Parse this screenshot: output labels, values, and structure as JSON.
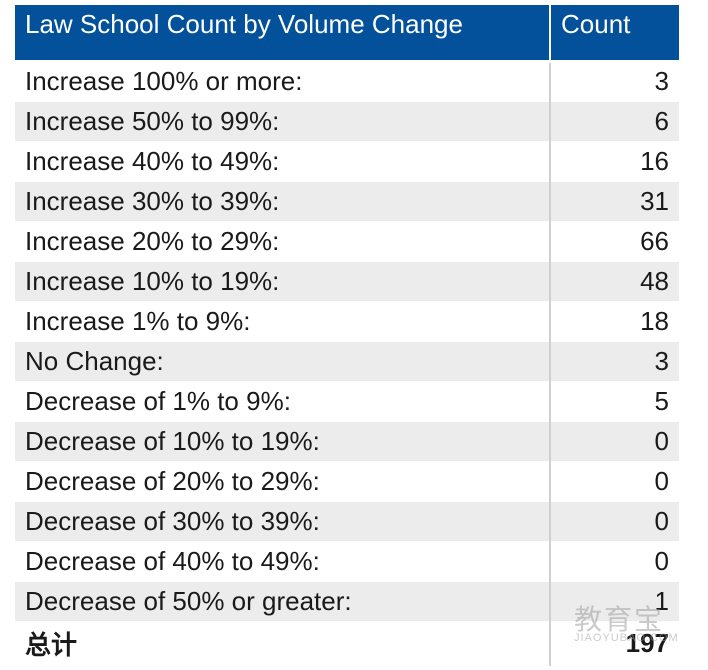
{
  "chart_data": {
    "type": "table",
    "columns": [
      "Law School Count by Volume Change",
      "Count"
    ],
    "rows": [
      {
        "label": "Increase 100% or more:",
        "value": 3
      },
      {
        "label": "Increase 50% to 99%:",
        "value": 6
      },
      {
        "label": "Increase 40% to 49%:",
        "value": 16
      },
      {
        "label": "Increase 30% to 39%:",
        "value": 31
      },
      {
        "label": "Increase 20% to 29%:",
        "value": 66
      },
      {
        "label": "Increase 10% to 19%:",
        "value": 48
      },
      {
        "label": "Increase 1% to 9%:",
        "value": 18
      },
      {
        "label": "No Change:",
        "value": 3
      },
      {
        "label": "Decrease of 1% to 9%:",
        "value": 5
      },
      {
        "label": "Decrease of 10% to 19%:",
        "value": 0
      },
      {
        "label": "Decrease of 20% to 29%:",
        "value": 0
      },
      {
        "label": "Decrease of 30% to 39%:",
        "value": 0
      },
      {
        "label": "Decrease of 40% to 49%:",
        "value": 0
      },
      {
        "label": "Decrease of 50% or greater:",
        "value": 1
      }
    ],
    "total": {
      "label": "总计",
      "value": 197
    }
  },
  "watermark": {
    "text": "教育宝",
    "sub": "JIAOYUBAO.COM"
  },
  "colors": {
    "header_bg": "#03519b",
    "stripe": "#ececec"
  }
}
